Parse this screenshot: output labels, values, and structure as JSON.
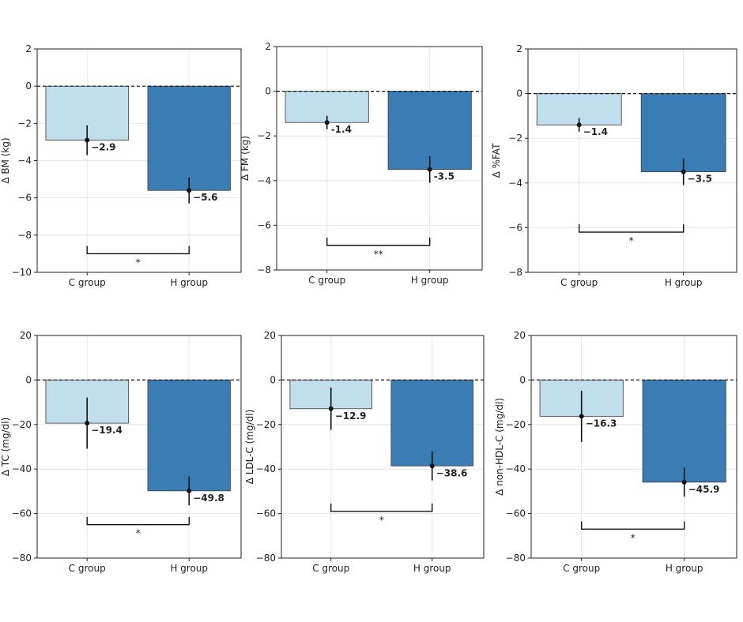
{
  "chart_data": [
    {
      "type": "bar",
      "categories": [
        "C group",
        "H group"
      ],
      "ylabel": "Δ BM (kg)",
      "ylim": [
        -10,
        2
      ],
      "yticks": [
        2,
        0,
        -2,
        -4,
        -6,
        -8,
        -10
      ],
      "values": [
        -2.9,
        -5.6
      ],
      "error": [
        0.8,
        0.7
      ],
      "data_labels": [
        "−2.9",
        "−5.6"
      ],
      "significance": "*",
      "bracket_y": -9.0,
      "colors": [
        "#c0deeb",
        "#3a7db5"
      ],
      "grid": true
    },
    {
      "type": "bar",
      "categories": [
        "C group",
        "H group"
      ],
      "ylabel": "Δ FM (kg)",
      "ylim": [
        -8,
        2
      ],
      "yticks": [
        2,
        0,
        -2,
        -4,
        -6,
        -8
      ],
      "values": [
        -1.4,
        -3.5
      ],
      "error": [
        0.3,
        0.6
      ],
      "data_labels": [
        "-1.4",
        "-3.5"
      ],
      "significance": "**",
      "bracket_y": -6.9,
      "colors": [
        "#c0deeb",
        "#3a7db5"
      ],
      "grid": true
    },
    {
      "type": "bar",
      "categories": [
        "C group",
        "H group"
      ],
      "ylabel": "Δ %FAT",
      "ylim": [
        -8,
        2
      ],
      "yticks": [
        2,
        0,
        -2,
        -4,
        -6,
        -8
      ],
      "values": [
        -1.4,
        -3.5
      ],
      "error": [
        0.3,
        0.6
      ],
      "data_labels": [
        "−1.4",
        "−3.5"
      ],
      "significance": "*",
      "bracket_y": -6.2,
      "colors": [
        "#c0deeb",
        "#3a7db5"
      ],
      "grid": true
    },
    {
      "type": "bar",
      "categories": [
        "C group",
        "H group"
      ],
      "ylabel": "Δ TC (mg/dl)",
      "ylim": [
        -80,
        20
      ],
      "yticks": [
        20,
        0,
        -20,
        -40,
        -60,
        -80
      ],
      "values": [
        -19.4,
        -49.8
      ],
      "error": [
        11.5,
        6.5
      ],
      "data_labels": [
        "−19.4",
        "−49.8"
      ],
      "significance": "*",
      "bracket_y": -65,
      "colors": [
        "#c0deeb",
        "#3a7db5"
      ],
      "grid": true
    },
    {
      "type": "bar",
      "categories": [
        "C group",
        "H group"
      ],
      "ylabel": "Δ LDL-C (mg/dl)",
      "ylim": [
        -80,
        20
      ],
      "yticks": [
        20,
        0,
        -20,
        -40,
        -60,
        -80
      ],
      "values": [
        -12.9,
        -38.6
      ],
      "error": [
        9.5,
        6.5
      ],
      "data_labels": [
        "−12.9",
        "−38.6"
      ],
      "significance": "*",
      "bracket_y": -59,
      "colors": [
        "#c0deeb",
        "#3a7db5"
      ],
      "grid": true
    },
    {
      "type": "bar",
      "categories": [
        "C group",
        "H group"
      ],
      "ylabel": "Δ non-HDL-C (mg/dl)",
      "ylim": [
        -80,
        20
      ],
      "yticks": [
        20,
        0,
        -20,
        -40,
        -60,
        -80
      ],
      "values": [
        -16.3,
        -45.9
      ],
      "error": [
        11.5,
        6.5
      ],
      "data_labels": [
        "−16.3",
        "−45.9"
      ],
      "significance": "*",
      "bracket_y": -67,
      "colors": [
        "#c0deeb",
        "#3a7db5"
      ],
      "grid": true
    }
  ]
}
